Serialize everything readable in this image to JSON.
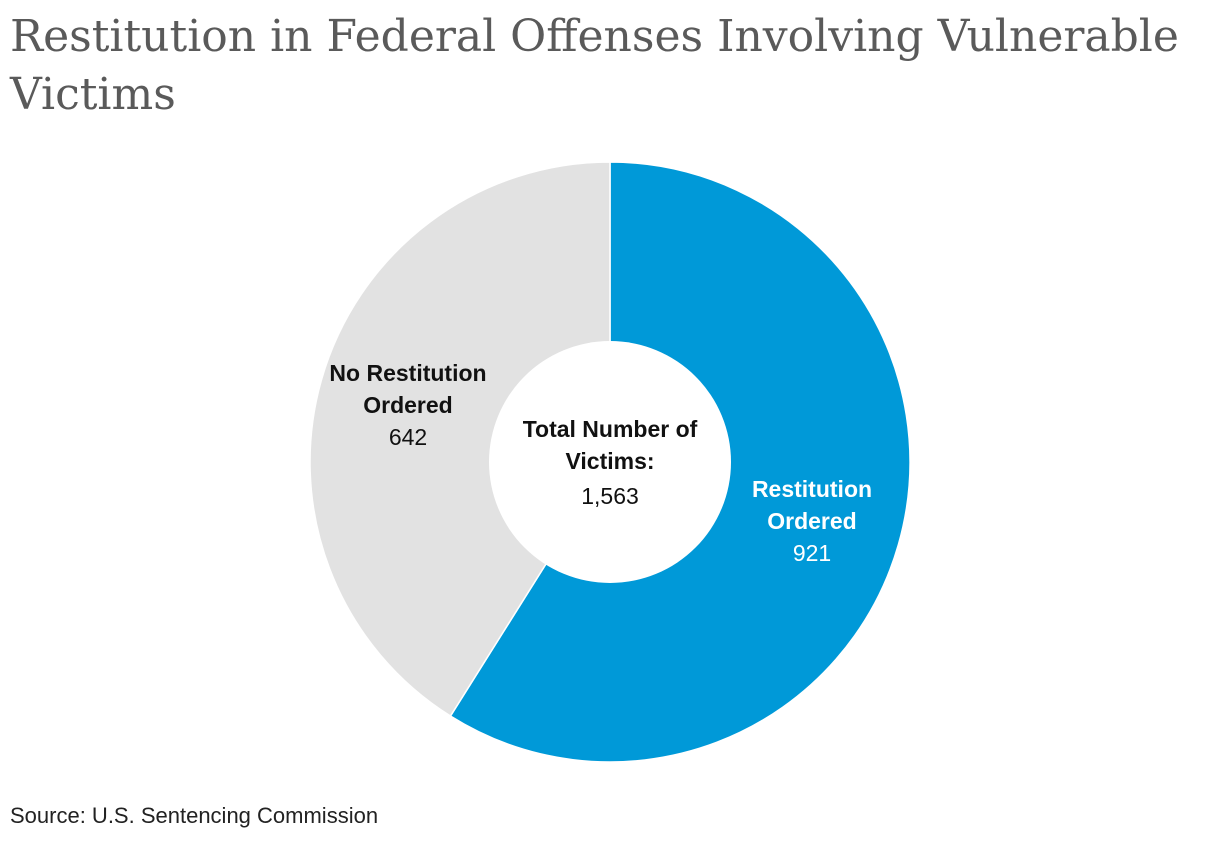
{
  "title": "Restitution in Federal Offenses Involving Vulnerable Victims",
  "source": "Source: U.S. Sentencing Commission",
  "chart_data": {
    "type": "pie",
    "donut": true,
    "center_label": [
      "Total Number of",
      "Victims:"
    ],
    "center_value": "1,563",
    "slices": [
      {
        "label": [
          "Restitution",
          "Ordered"
        ],
        "value": 921,
        "value_text": "921",
        "color": "#0099d8",
        "label_color": "#ffffff"
      },
      {
        "label": [
          "No Restitution",
          "Ordered"
        ],
        "value": 642,
        "value_text": "642",
        "color": "#e2e2e2",
        "label_color": "#111111"
      }
    ]
  }
}
